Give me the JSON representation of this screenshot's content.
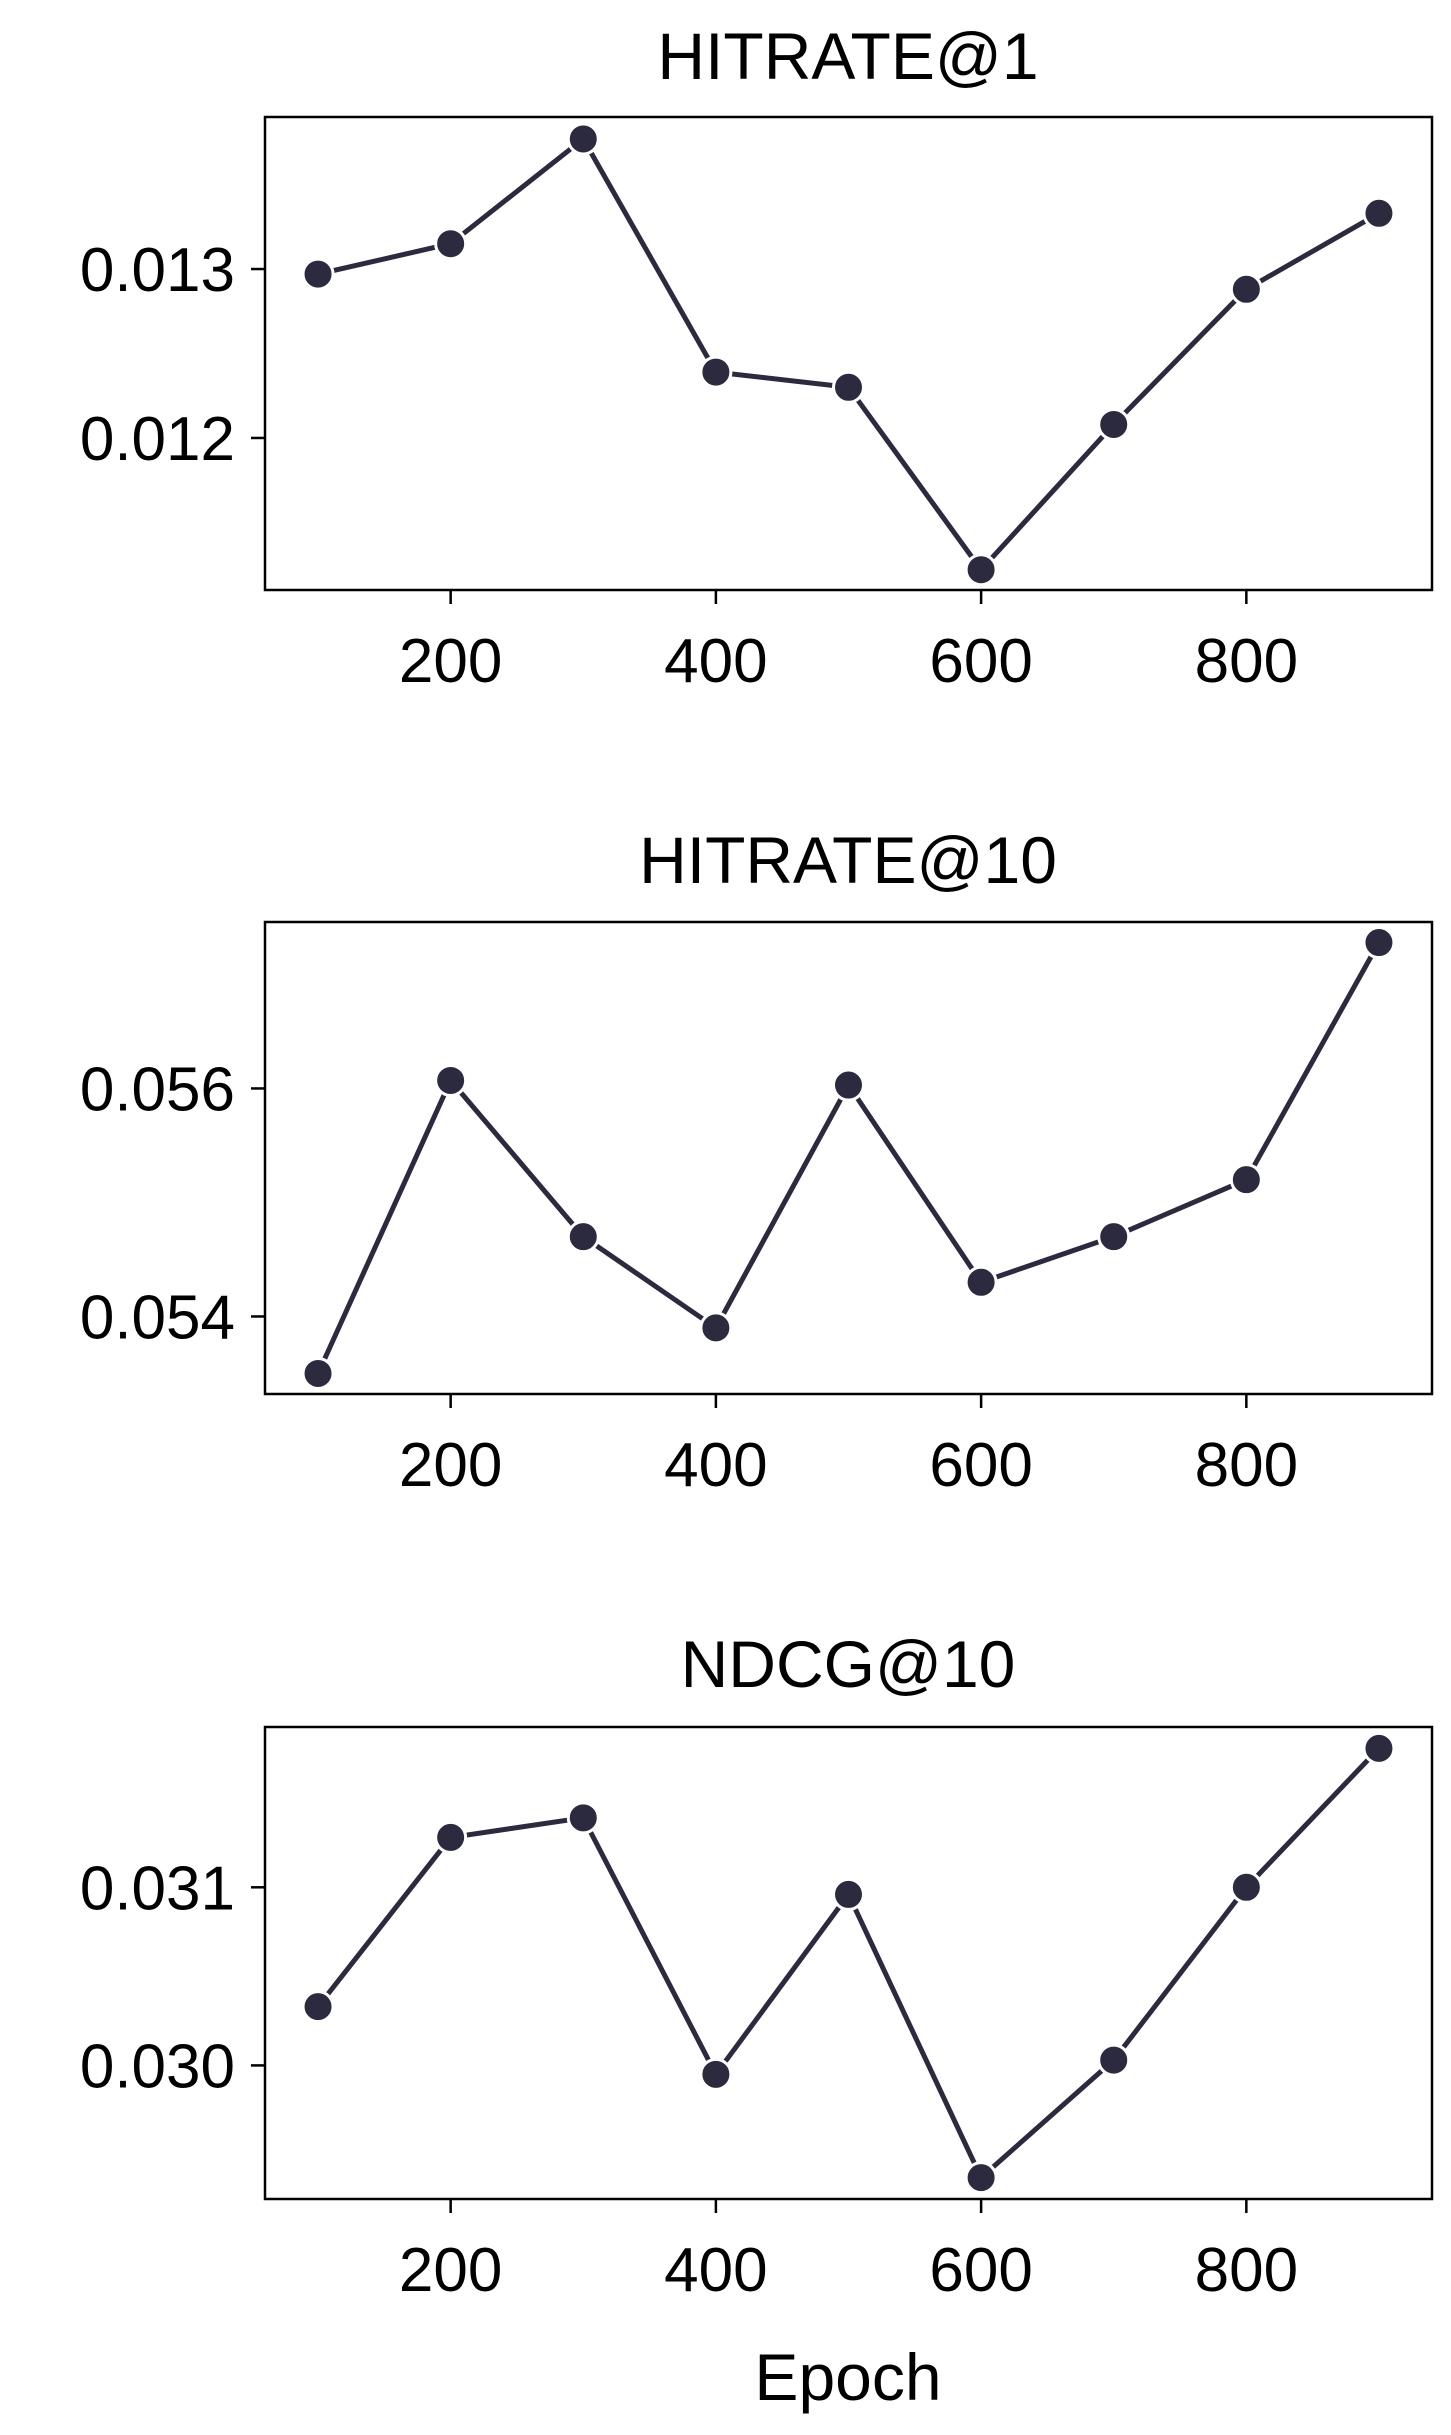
{
  "chart_data": [
    {
      "type": "line",
      "title": "HITRATE@1",
      "xlabel": "",
      "ylabel": "",
      "x": [
        100,
        200,
        300,
        400,
        500,
        600,
        700,
        800,
        900
      ],
      "series": [
        {
          "values": [
            0.01297,
            0.01315,
            0.01377,
            0.01239,
            0.0123,
            0.01122,
            0.01208,
            0.01288,
            0.01333
          ]
        }
      ],
      "xlim": [
        60,
        940
      ],
      "ylim": [
        0.0111,
        0.0139
      ],
      "xticks": [
        200,
        400,
        600,
        800
      ],
      "xtick_labels": [
        "200",
        "400",
        "600",
        "800"
      ],
      "yticks": [
        0.012,
        0.013
      ],
      "ytick_labels": [
        "0.012",
        "0.013"
      ],
      "grid": false,
      "legend": "none"
    },
    {
      "type": "line",
      "title": "HITRATE@10",
      "xlabel": "",
      "ylabel": "",
      "x": [
        100,
        200,
        300,
        400,
        500,
        600,
        700,
        800,
        900
      ],
      "series": [
        {
          "values": [
            0.0535,
            0.05607,
            0.0547,
            0.0539,
            0.05603,
            0.0543,
            0.0547,
            0.0552,
            0.05728
          ]
        }
      ],
      "xlim": [
        60,
        940
      ],
      "ylim": [
        0.05332,
        0.05746
      ],
      "xticks": [
        200,
        400,
        600,
        800
      ],
      "xtick_labels": [
        "200",
        "400",
        "600",
        "800"
      ],
      "yticks": [
        0.054,
        0.056
      ],
      "ytick_labels": [
        "0.054",
        "0.056"
      ],
      "grid": false,
      "legend": "none"
    },
    {
      "type": "line",
      "title": "NDCG@10",
      "xlabel": "Epoch",
      "ylabel": "",
      "x": [
        100,
        200,
        300,
        400,
        500,
        600,
        700,
        800,
        900
      ],
      "series": [
        {
          "values": [
            0.03033,
            0.03128,
            0.03139,
            0.02995,
            0.03096,
            0.02937,
            0.03003,
            0.031,
            0.03178
          ]
        }
      ],
      "xlim": [
        60,
        940
      ],
      "ylim": [
        0.02925,
        0.0319
      ],
      "xticks": [
        200,
        400,
        600,
        800
      ],
      "xtick_labels": [
        "200",
        "400",
        "600",
        "800"
      ],
      "yticks": [
        0.03,
        0.031
      ],
      "ytick_labels": [
        "0.030",
        "0.031"
      ],
      "grid": false,
      "legend": "none"
    }
  ],
  "style": {
    "line_color": "#2b2a3f",
    "marker_color": "#2b2a3f",
    "marker_edge": "#ffffff",
    "axis_color": "#000000",
    "background": "#ffffff"
  }
}
